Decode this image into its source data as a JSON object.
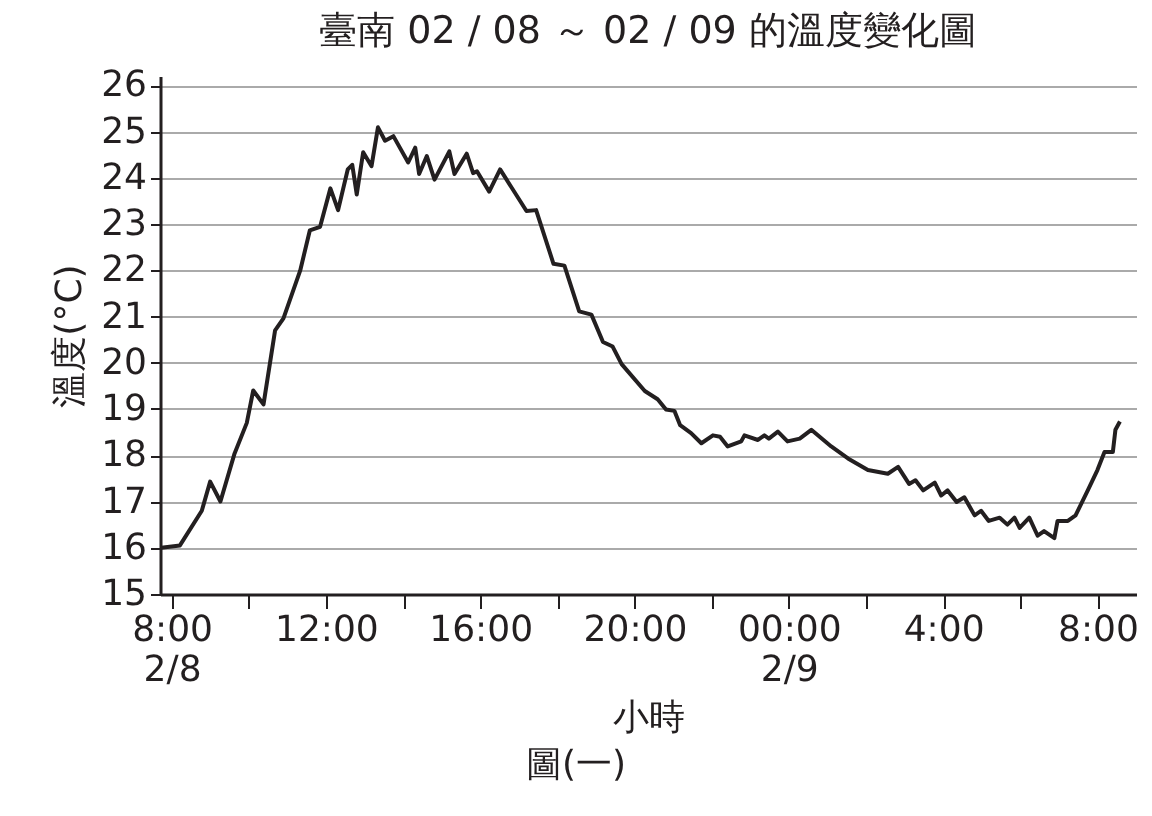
{
  "chart_data": {
    "type": "line",
    "title": "臺南 02 / 08 ～ 02 / 09 的溫度變化圖",
    "xlabel": "小時",
    "ylabel": "溫度(°C)",
    "annotations": [
      "圖(一)"
    ],
    "x": [
      "--02-08T07:44",
      "--02-08T08:13",
      "--02-08T08:47",
      "--02-08T09:00",
      "--02-08T09:16",
      "--02-08T09:38",
      "--02-08T09:57",
      "--02-08T10:07",
      "--02-08T10:23",
      "--02-08T10:41",
      "--02-08T10:54",
      "--02-08T11:20",
      "--02-08T11:35",
      "--02-08T11:51",
      "--02-08T12:07",
      "--02-08T12:19",
      "--02-08T12:34",
      "--02-08T12:41",
      "--02-08T12:48",
      "--02-08T12:58",
      "--02-08T13:11",
      "--02-08T13:21",
      "--02-08T13:32",
      "--02-08T13:45",
      "--02-08T14:08",
      "--02-08T14:19",
      "--02-08T14:25",
      "--02-08T14:37",
      "--02-08T14:49",
      "--02-08T15:12",
      "--02-08T15:20",
      "--02-08T15:39",
      "--02-08T15:49",
      "--02-08T15:55",
      "--02-08T16:14",
      "--02-08T16:31",
      "--02-08T17:12",
      "--02-08T17:27",
      "--02-08T17:54",
      "--02-08T18:11",
      "--02-08T18:34",
      "--02-08T18:53",
      "--02-08T19:11",
      "--02-08T19:26",
      "--02-08T19:40",
      "--02-08T20:16",
      "--02-08T20:36",
      "--02-08T20:49",
      "--02-08T21:02",
      "--02-08T21:11",
      "--02-08T21:28",
      "--02-08T21:44",
      "--02-08T22:02",
      "--02-08T22:13",
      "--02-08T22:25",
      "--02-08T22:46",
      "--02-08T22:51",
      "--02-08T23:12",
      "--02-08T23:22",
      "--02-08T23:29",
      "--02-08T23:43",
      "--02-08T23:58",
      "--02-09T00:17",
      "--02-09T00:35",
      "--02-09T01:06",
      "--02-09T01:32",
      "--02-09T02:03",
      "--02-09T02:34",
      "--02-09T02:50",
      "--02-09T03:07",
      "--02-09T03:17",
      "--02-09T03:29",
      "--02-09T03:47",
      "--02-09T03:57",
      "--02-09T04:07",
      "--02-09T04:21",
      "--02-09T04:33",
      "--02-09T04:49",
      "--02-09T04:59",
      "--02-09T05:11",
      "--02-09T05:28",
      "--02-09T05:40",
      "--02-09T05:51",
      "--02-09T05:59",
      "--02-09T06:14",
      "--02-09T06:27",
      "--02-09T06:37",
      "--02-09T06:53",
      "--02-09T06:58",
      "--02-09T07:14",
      "--02-09T07:26",
      "--02-09T07:45",
      "--02-09T08:00",
      "--02-09T08:11",
      "--02-09T08:24",
      "--02-09T08:28",
      "--02-09T08:35"
    ],
    "values": [
      16.0,
      16.05,
      16.8,
      17.43,
      17.0,
      18.04,
      18.7,
      19.4,
      19.1,
      20.7,
      20.96,
      21.99,
      22.86,
      22.94,
      23.77,
      23.3,
      24.18,
      24.28,
      23.64,
      24.55,
      24.25,
      25.09,
      24.8,
      24.9,
      24.33,
      24.65,
      24.08,
      24.47,
      23.96,
      24.57,
      24.08,
      24.52,
      24.1,
      24.14,
      23.7,
      24.18,
      23.28,
      23.3,
      22.14,
      22.1,
      21.11,
      21.04,
      20.45,
      20.35,
      19.97,
      19.39,
      19.21,
      18.99,
      18.96,
      18.65,
      18.48,
      18.26,
      18.43,
      18.4,
      18.19,
      18.3,
      18.43,
      18.33,
      18.43,
      18.36,
      18.51,
      18.3,
      18.36,
      18.55,
      18.19,
      17.93,
      17.68,
      17.6,
      17.75,
      17.38,
      17.46,
      17.24,
      17.41,
      17.13,
      17.24,
      16.99,
      17.09,
      16.7,
      16.8,
      16.58,
      16.65,
      16.5,
      16.65,
      16.43,
      16.65,
      16.26,
      16.36,
      16.21,
      16.58,
      16.58,
      16.7,
      17.24,
      17.68,
      18.07,
      18.07,
      18.55,
      18.73
    ],
    "color": "#231f20",
    "xlim": [
      "--02-08T07:42",
      "--02-09T09:00"
    ],
    "xticks": [
      {
        "value": "--02-08T08:00",
        "label": "8:00\n2/8"
      },
      {
        "value": "--02-08T10:00",
        "label": null
      },
      {
        "value": "--02-08T12:00",
        "label": "12:00"
      },
      {
        "value": "--02-08T14:00",
        "label": null
      },
      {
        "value": "--02-08T16:00",
        "label": "16:00"
      },
      {
        "value": "--02-08T18:00",
        "label": null
      },
      {
        "value": "--02-08T20:00",
        "label": "20:00"
      },
      {
        "value": "--02-08T22:00",
        "label": null
      },
      {
        "value": "--02-09T00:00",
        "label": "00:00\n2/9"
      },
      {
        "value": "--02-09T02:00",
        "label": null
      },
      {
        "value": "--02-09T04:00",
        "label": "4:00"
      },
      {
        "value": "--02-09T06:00",
        "label": null
      },
      {
        "value": "--02-09T08:00",
        "label": "8:00"
      }
    ],
    "ylim": [
      15,
      26.2
    ],
    "yticks": [
      15,
      16,
      17,
      18,
      19,
      20,
      21,
      22,
      23,
      24,
      25,
      26
    ],
    "grid": "y"
  }
}
